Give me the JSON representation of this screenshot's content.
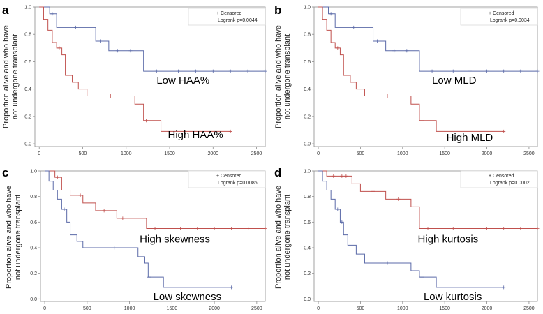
{
  "figure": {
    "ylabel_line1": "Proportion alive and who have",
    "ylabel_line2": "not undergone transplant",
    "legend_censored": "+ Censored",
    "colors": {
      "blue": "#5b6aa8",
      "red": "#c0504d",
      "axis": "#8c8c8c",
      "grid": "#e8e8e8"
    }
  },
  "chart_data": [
    {
      "panel": "a",
      "type": "line",
      "subtype": "kaplan-meier",
      "pvalue": "Logrank p=0.0044",
      "xlim": [
        -50,
        2600
      ],
      "ylim": [
        -0.02,
        1.0
      ],
      "xticks": [
        "0",
        "500",
        "1000",
        "1500",
        "2000",
        "2500"
      ],
      "yticks": [
        "0.0",
        "0.2",
        "0.4",
        "0.6",
        "0.8",
        "1.0"
      ],
      "series": [
        {
          "name": "Low HAA%",
          "color": "blue",
          "label_x": 1350,
          "label_y": 0.44,
          "x": [
            0,
            120,
            200,
            300,
            650,
            800,
            950,
            1200,
            2600
          ],
          "y": [
            1.0,
            0.95,
            0.85,
            0.85,
            0.75,
            0.68,
            0.68,
            0.53,
            0.53
          ],
          "censored": [
            [
              150,
              0.95
            ],
            [
              420,
              0.85
            ],
            [
              700,
              0.75
            ],
            [
              900,
              0.68
            ],
            [
              1050,
              0.68
            ],
            [
              1350,
              0.53
            ],
            [
              1600,
              0.53
            ],
            [
              1800,
              0.53
            ],
            [
              2000,
              0.53
            ],
            [
              2200,
              0.53
            ],
            [
              2400,
              0.53
            ],
            [
              2600,
              0.53
            ]
          ]
        },
        {
          "name": "High HAA%",
          "color": "red",
          "label_x": 1480,
          "label_y": 0.04,
          "x": [
            0,
            50,
            100,
            150,
            200,
            260,
            300,
            380,
            450,
            550,
            1100,
            1200,
            1400,
            2200
          ],
          "y": [
            1.0,
            0.91,
            0.83,
            0.74,
            0.7,
            0.65,
            0.5,
            0.45,
            0.4,
            0.35,
            0.29,
            0.17,
            0.09,
            0.09
          ],
          "censored": [
            [
              230,
              0.7
            ],
            [
              820,
              0.35
            ],
            [
              1230,
              0.17
            ],
            [
              2200,
              0.09
            ]
          ]
        }
      ]
    },
    {
      "panel": "b",
      "type": "line",
      "subtype": "kaplan-meier",
      "pvalue": "Logrank p=0.0034",
      "xlim": [
        -50,
        2600
      ],
      "ylim": [
        -0.02,
        1.0
      ],
      "xticks": [
        "0",
        "500",
        "1000",
        "1500",
        "2000",
        "2500"
      ],
      "yticks": [
        "0.0",
        "0.2",
        "0.4",
        "0.6",
        "0.8",
        "1.0"
      ],
      "series": [
        {
          "name": "Low MLD",
          "color": "blue",
          "label_x": 1350,
          "label_y": 0.44,
          "x": [
            0,
            120,
            200,
            300,
            650,
            800,
            950,
            1200,
            2600
          ],
          "y": [
            1.0,
            0.95,
            0.85,
            0.85,
            0.75,
            0.68,
            0.68,
            0.53,
            0.53
          ],
          "censored": [
            [
              150,
              0.95
            ],
            [
              420,
              0.85
            ],
            [
              700,
              0.75
            ],
            [
              900,
              0.68
            ],
            [
              1050,
              0.68
            ],
            [
              1350,
              0.53
            ],
            [
              1600,
              0.53
            ],
            [
              1800,
              0.53
            ],
            [
              2000,
              0.53
            ],
            [
              2200,
              0.53
            ],
            [
              2400,
              0.53
            ],
            [
              2600,
              0.53
            ]
          ]
        },
        {
          "name": "High MLD",
          "color": "red",
          "label_x": 1520,
          "label_y": 0.02,
          "x": [
            0,
            50,
            100,
            150,
            200,
            260,
            300,
            380,
            450,
            550,
            1100,
            1200,
            1400,
            2200
          ],
          "y": [
            1.0,
            0.91,
            0.83,
            0.74,
            0.7,
            0.65,
            0.5,
            0.45,
            0.4,
            0.35,
            0.29,
            0.17,
            0.09,
            0.09
          ],
          "censored": [
            [
              230,
              0.7
            ],
            [
              820,
              0.35
            ],
            [
              1230,
              0.17
            ],
            [
              2200,
              0.09
            ]
          ]
        }
      ]
    },
    {
      "panel": "c",
      "type": "line",
      "subtype": "kaplan-meier",
      "pvalue": "Logrank p=0.0086",
      "xlim": [
        -50,
        2600
      ],
      "ylim": [
        -0.02,
        1.0
      ],
      "xticks": [
        "0",
        "500",
        "1000",
        "1500",
        "2000",
        "2500"
      ],
      "yticks": [
        "0.0",
        "0.2",
        "0.4",
        "0.6",
        "0.8",
        "1.0"
      ],
      "series": [
        {
          "name": "High skewness",
          "color": "red",
          "label_x": 1120,
          "label_y": 0.44,
          "x": [
            0,
            120,
            200,
            300,
            450,
            600,
            850,
            1200,
            2600
          ],
          "y": [
            1.0,
            0.95,
            0.85,
            0.81,
            0.75,
            0.69,
            0.63,
            0.55,
            0.55
          ],
          "censored": [
            [
              150,
              0.95
            ],
            [
              420,
              0.81
            ],
            [
              700,
              0.69
            ],
            [
              920,
              0.63
            ],
            [
              1300,
              0.55
            ],
            [
              1600,
              0.55
            ],
            [
              1800,
              0.55
            ],
            [
              2000,
              0.55
            ],
            [
              2200,
              0.55
            ],
            [
              2400,
              0.55
            ],
            [
              2600,
              0.55
            ]
          ]
        },
        {
          "name": "Low skewness",
          "color": "blue",
          "label_x": 1280,
          "label_y": -0.01,
          "x": [
            0,
            50,
            100,
            150,
            200,
            260,
            300,
            380,
            450,
            550,
            1100,
            1180,
            1220,
            1400,
            2200
          ],
          "y": [
            1.0,
            0.92,
            0.85,
            0.78,
            0.7,
            0.6,
            0.5,
            0.45,
            0.4,
            0.4,
            0.33,
            0.28,
            0.17,
            0.09,
            0.09
          ],
          "censored": [
            [
              230,
              0.7
            ],
            [
              820,
              0.4
            ],
            [
              1230,
              0.17
            ],
            [
              2200,
              0.09
            ]
          ]
        }
      ]
    },
    {
      "panel": "d",
      "type": "line",
      "subtype": "kaplan-meier",
      "pvalue": "Logrank p=0.0002",
      "xlim": [
        -50,
        2600
      ],
      "ylim": [
        -0.02,
        1.0
      ],
      "xticks": [
        "0",
        "500",
        "1000",
        "1500",
        "2000",
        "2500"
      ],
      "yticks": [
        "0.0",
        "0.2",
        "0.4",
        "0.6",
        "0.8",
        "1.0"
      ],
      "series": [
        {
          "name": "High kurtosis",
          "color": "red",
          "label_x": 1180,
          "label_y": 0.44,
          "x": [
            0,
            100,
            150,
            400,
            500,
            800,
            1100,
            1200,
            2600
          ],
          "y": [
            1.0,
            0.96,
            0.96,
            0.9,
            0.84,
            0.78,
            0.72,
            0.55,
            0.55
          ],
          "censored": [
            [
              180,
              0.96
            ],
            [
              280,
              0.96
            ],
            [
              330,
              0.96
            ],
            [
              650,
              0.84
            ],
            [
              950,
              0.78
            ],
            [
              1300,
              0.55
            ],
            [
              1600,
              0.55
            ],
            [
              1800,
              0.55
            ],
            [
              2000,
              0.55
            ],
            [
              2200,
              0.55
            ],
            [
              2400,
              0.55
            ],
            [
              2600,
              0.55
            ]
          ]
        },
        {
          "name": "Low kurtosis",
          "color": "blue",
          "label_x": 1250,
          "label_y": -0.01,
          "x": [
            0,
            50,
            100,
            150,
            200,
            260,
            300,
            350,
            450,
            550,
            1100,
            1200,
            1400,
            2200
          ],
          "y": [
            1.0,
            0.92,
            0.85,
            0.78,
            0.7,
            0.6,
            0.5,
            0.42,
            0.35,
            0.28,
            0.22,
            0.17,
            0.09,
            0.09
          ],
          "censored": [
            [
              230,
              0.7
            ],
            [
              280,
              0.6
            ],
            [
              820,
              0.28
            ],
            [
              1230,
              0.17
            ],
            [
              2200,
              0.09
            ]
          ]
        }
      ]
    }
  ]
}
